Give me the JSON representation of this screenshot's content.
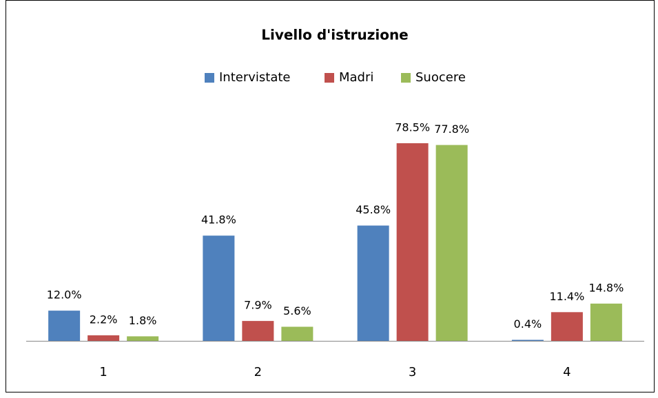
{
  "chart_data": {
    "type": "bar",
    "title": "Livello d'istruzione",
    "categories": [
      "1",
      "2",
      "3",
      "4"
    ],
    "series": [
      {
        "name": "Intervistate",
        "color": "#4f81bd",
        "values": [
          12.0,
          41.8,
          45.8,
          0.4
        ],
        "value_labels": [
          "12.0%",
          "41.8%",
          "45.8%",
          "0.4%"
        ]
      },
      {
        "name": "Madri",
        "color": "#c0504d",
        "values": [
          2.2,
          7.9,
          78.5,
          11.4
        ],
        "value_labels": [
          "2.2%",
          "7.9%",
          "78.5%",
          "11.4%"
        ]
      },
      {
        "name": "Suocere",
        "color": "#9bbb59",
        "values": [
          1.8,
          5.6,
          77.8,
          14.8
        ],
        "value_labels": [
          "1.8%",
          "5.6%",
          "77.8%",
          "14.8%"
        ]
      }
    ],
    "legend": "top"
  }
}
